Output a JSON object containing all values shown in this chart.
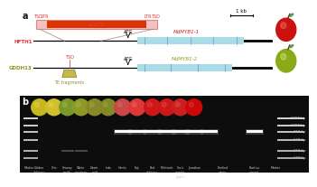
{
  "bg_color": "#ffffff",
  "panel_b_bg": "#111111",
  "scale_bar_text": "1 kb",
  "hfth1_label": "HFTH1",
  "gddh13_label": "GDDH13",
  "hfth1_color": "#dd3333",
  "gddh13_color": "#909020",
  "te_color_outer": "#f0b0b0",
  "te_color_inner": "#dd3300",
  "atg_label": "ATG",
  "mdmyb1_1_label": "MdMYB1-1",
  "mdmyb1_2_label": "MdMYB1-2",
  "exon_color_blue": "#a8dce8",
  "te_fragment_label": "TE fragments",
  "bp_labels": [
    "2000 bp",
    "1000 bp",
    "750 bp",
    "500 bp",
    "250 bp",
    "100 bp"
  ],
  "marker_labels": [
    "Marker",
    "Golden\ndelicious",
    "Orin",
    "Granny\nsmith",
    "White\npearman",
    "Ozark\ngold",
    "Indo",
    "Hanfu",
    "Fuji",
    "Red\ndelicious",
    "McIntosh",
    "Cox's\norange\npippin",
    "Jonathan",
    "Purified\nwater",
    "Positive\ncontrol",
    "Marker"
  ],
  "fig_width": 3.2,
  "fig_height": 1.81
}
